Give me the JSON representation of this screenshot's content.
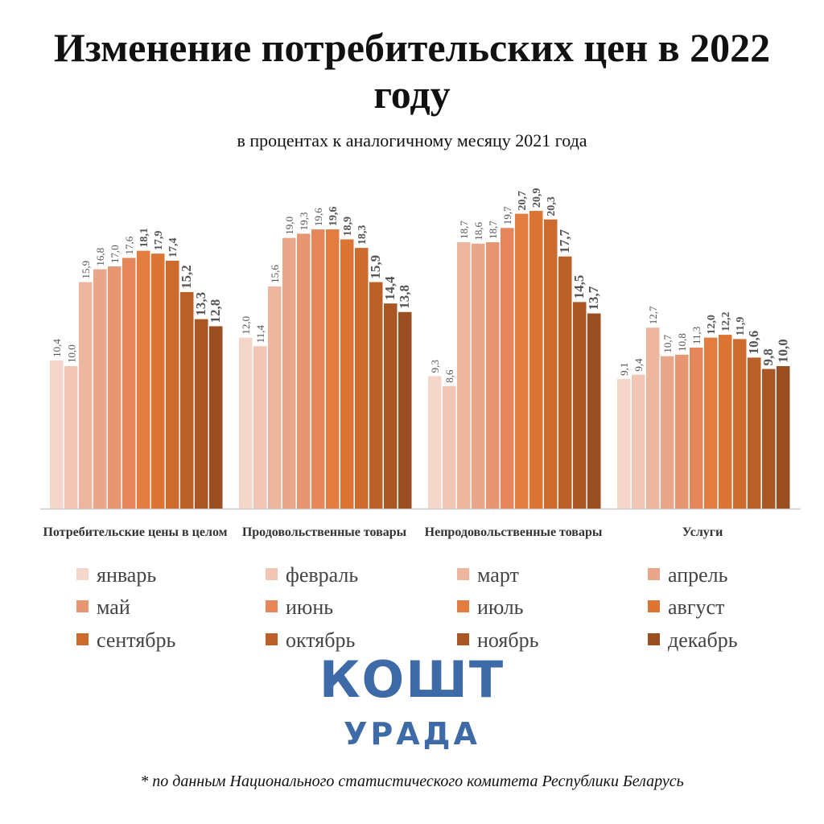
{
  "chart_data": {
    "type": "bar",
    "title": "Изменение потребительских цен в 2022 году",
    "subtitle": "в процентах к аналогичному месяцу 2021 года",
    "categories": [
      "Потребительские цены в целом",
      "Продовольственные товары",
      "Непродовольственные товары",
      "Услуги"
    ],
    "series": [
      {
        "name": "январь",
        "color": "#f4d6cb",
        "values": [
          10.4,
          12.0,
          9.3,
          9.1
        ],
        "value_labels": [
          "10,4",
          "12,0",
          "9,3",
          "9,1"
        ]
      },
      {
        "name": "февраль",
        "color": "#f1c6b5",
        "values": [
          10.0,
          11.4,
          8.6,
          9.4
        ],
        "value_labels": [
          "10,0",
          "11,4",
          "8,6",
          "9,4"
        ]
      },
      {
        "name": "март",
        "color": "#edb69f",
        "values": [
          15.9,
          15.6,
          18.7,
          12.7
        ],
        "value_labels": [
          "15,9",
          "15,6",
          "18,7",
          "12,7"
        ]
      },
      {
        "name": "апрель",
        "color": "#e9a68a",
        "values": [
          16.8,
          19.0,
          18.6,
          10.7
        ],
        "value_labels": [
          "16,8",
          "19,0",
          "18,6",
          "10,7"
        ]
      },
      {
        "name": "май",
        "color": "#e79673",
        "values": [
          17.0,
          19.3,
          18.7,
          10.8
        ],
        "value_labels": [
          "17,0",
          "19,3",
          "18,7",
          "10,8"
        ]
      },
      {
        "name": "июнь",
        "color": "#e5875a",
        "values": [
          17.6,
          19.6,
          19.7,
          11.3
        ],
        "value_labels": [
          "17,6",
          "19,6",
          "19,7",
          "11,3"
        ]
      },
      {
        "name": "июль",
        "color": "#e27c40",
        "values": [
          18.1,
          19.6,
          20.7,
          12.0
        ],
        "value_labels": [
          "18,1",
          "19,6",
          "20,7",
          "12,0"
        ]
      },
      {
        "name": "август",
        "color": "#dc7533",
        "values": [
          17.9,
          18.9,
          20.9,
          12.2
        ],
        "value_labels": [
          "17,9",
          "18,9",
          "20,9",
          "12,2"
        ]
      },
      {
        "name": "сентябрь",
        "color": "#cd6a2d",
        "values": [
          17.4,
          18.3,
          20.3,
          11.9
        ],
        "value_labels": [
          "17,4",
          "18,3",
          "20,3",
          "11,9"
        ]
      },
      {
        "name": "октябрь",
        "color": "#bc602a",
        "values": [
          15.2,
          15.9,
          17.7,
          10.6
        ],
        "value_labels": [
          "15,2",
          "15,9",
          "17,7",
          "10,6"
        ]
      },
      {
        "name": "ноябрь",
        "color": "#aa5625",
        "values": [
          13.3,
          14.4,
          14.5,
          9.8
        ],
        "value_labels": [
          "13,3",
          "14,4",
          "14,5",
          "9,8"
        ]
      },
      {
        "name": "декабрь",
        "color": "#9b4e22",
        "values": [
          12.8,
          13.8,
          13.7,
          10.0
        ],
        "value_labels": [
          "12,8",
          "13,8",
          "13,7",
          "10,0"
        ]
      }
    ]
  },
  "logo": {
    "top": "КОШТ",
    "bottom": "УРАДА"
  },
  "footnote": "* по данным Национального статистического комитета  Республики Беларусь"
}
